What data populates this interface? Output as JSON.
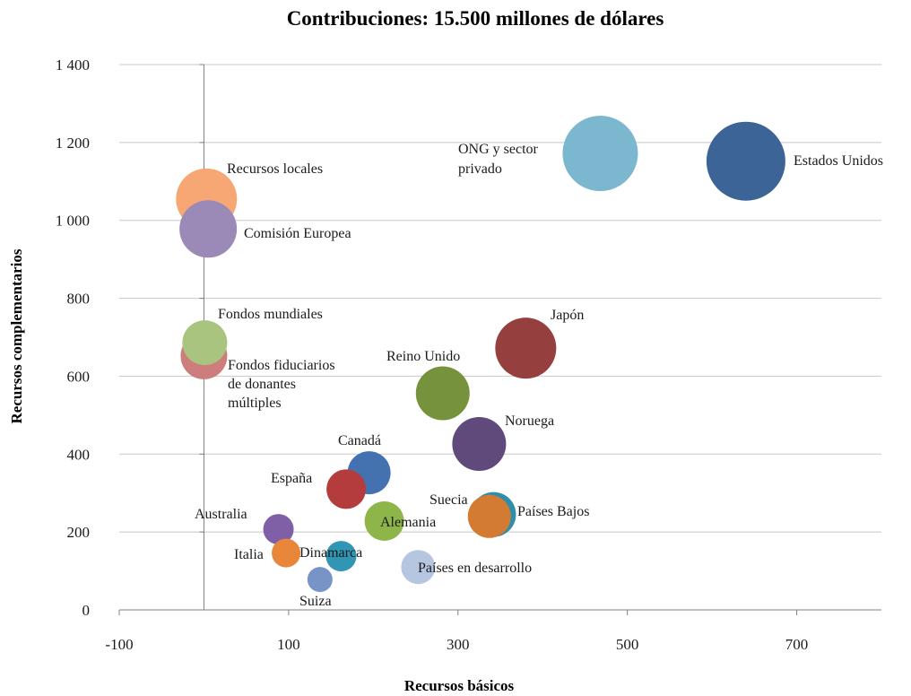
{
  "chart_data": {
    "type": "scatter",
    "title": "Contribuciones: 15.500 millones de dólares",
    "xlabel": "Recursos básicos",
    "ylabel": "Recursos complementarios",
    "xlim": [
      -100,
      800
    ],
    "ylim": [
      0,
      1400
    ],
    "xticks": [
      -100,
      100,
      300,
      500,
      700
    ],
    "xtick_labels": [
      "-100",
      "100",
      "300",
      "500",
      "700"
    ],
    "yticks": [
      0,
      200,
      400,
      600,
      800,
      1000,
      1200,
      1400
    ],
    "ytick_labels": [
      "0",
      "200",
      "400",
      "600",
      "800",
      "1 000",
      "1 200",
      "1 400"
    ],
    "grid": "horizontal",
    "legend": "none",
    "points": [
      {
        "label": "Estados Unidos",
        "x": 640,
        "y": 1152,
        "size": 44,
        "color": "#3c6496"
      },
      {
        "label": "ONG y sector privado",
        "x": 468,
        "y": 1172,
        "size": 42,
        "color": "#7bb7ce"
      },
      {
        "label": "Recursos locales",
        "x": 3,
        "y": 1055,
        "size": 34,
        "color": "#f7a774"
      },
      {
        "label": "Comisión Europea",
        "x": 5,
        "y": 978,
        "size": 32,
        "color": "#9b8ab7"
      },
      {
        "label": "Fondos mundiales",
        "x": 1,
        "y": 686,
        "size": 25,
        "color": "#a9c47f"
      },
      {
        "label": "Fondos fiduciarios de donantes múltiples",
        "x": 0,
        "y": 652,
        "size": 26,
        "color": "#ce7d7d"
      },
      {
        "label": "Japón",
        "x": 380,
        "y": 672,
        "size": 34,
        "color": "#963f3f"
      },
      {
        "label": "Reino Unido",
        "x": 282,
        "y": 556,
        "size": 30,
        "color": "#76923c"
      },
      {
        "label": "Noruega",
        "x": 325,
        "y": 426,
        "size": 30,
        "color": "#604a7b"
      },
      {
        "label": "Canadá",
        "x": 195,
        "y": 352,
        "size": 24,
        "color": "#4472b0"
      },
      {
        "label": "España",
        "x": 168,
        "y": 310,
        "size": 22,
        "color": "#b43c3c"
      },
      {
        "label": "Suecia",
        "x": 342,
        "y": 245,
        "size": 25,
        "color": "#2f8fa8"
      },
      {
        "label": "Países Bajos",
        "x": 337,
        "y": 240,
        "size": 24,
        "color": "#d47b33"
      },
      {
        "label": "Alemania",
        "x": 213,
        "y": 228,
        "size": 22,
        "color": "#8db54a"
      },
      {
        "label": "Australia",
        "x": 88,
        "y": 207,
        "size": 17,
        "color": "#7f5fa6"
      },
      {
        "label": "Italia",
        "x": 97,
        "y": 146,
        "size": 16,
        "color": "#e8873a"
      },
      {
        "label": "Dinamarca",
        "x": 162,
        "y": 138,
        "size": 17,
        "color": "#3195b4"
      },
      {
        "label": "Países en desarrollo",
        "x": 253,
        "y": 110,
        "size": 19,
        "color": "#b6c6e0"
      },
      {
        "label": "Suiza",
        "x": 137,
        "y": 78,
        "size": 14,
        "color": "#7893c7"
      }
    ]
  },
  "labels": {
    "estados_unidos": "Estados Unidos",
    "ong_line1": "ONG y sector",
    "ong_line2": "privado",
    "recursos_locales": "Recursos locales",
    "comision_europea": "Comisión Europea",
    "fondos_mundiales": "Fondos mundiales",
    "ffdm_line1": "Fondos fiduciarios",
    "ffdm_line2": "de donantes",
    "ffdm_line3": "múltiples",
    "japon": "Japón",
    "reino_unido": "Reino Unido",
    "noruega": "Noruega",
    "canada": "Canadá",
    "espana": "España",
    "suecia": "Suecia",
    "paises_bajos": "Países Bajos",
    "alemania": "Alemania",
    "australia": "Australia",
    "italia": "Italia",
    "dinamarca": "Dinamarca",
    "paises_desarrollo": "Países en desarrollo",
    "suiza": "Suiza"
  }
}
